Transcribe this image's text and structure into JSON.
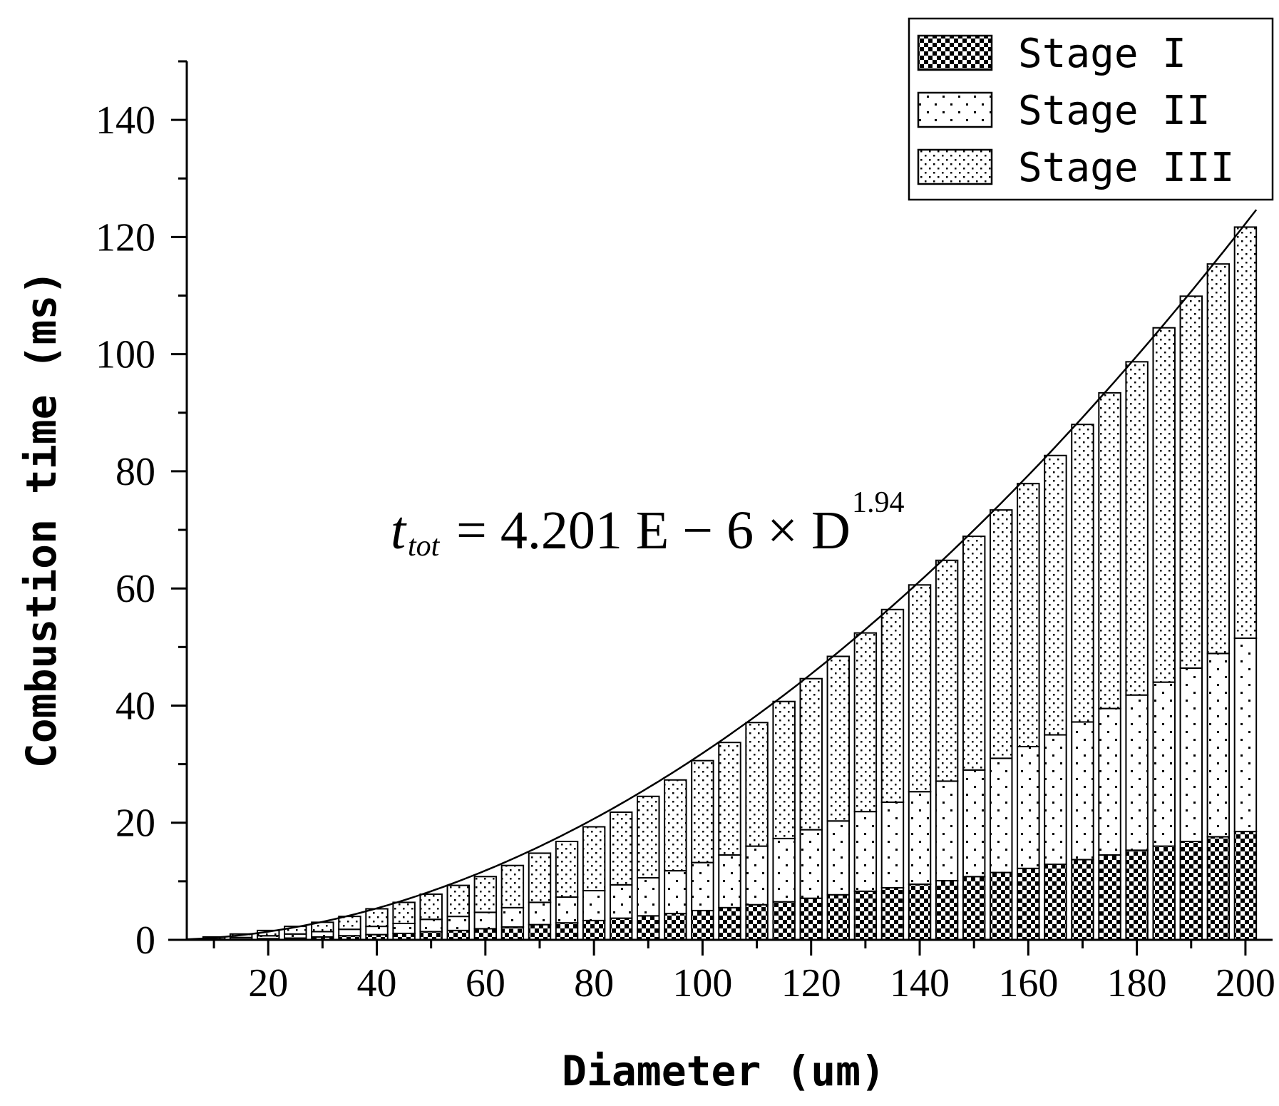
{
  "chart_data": {
    "type": "bar",
    "stacked": true,
    "xlabel": "Diameter (um)",
    "ylabel": "Combustion time (ms)",
    "xlim": [
      5,
      205
    ],
    "ylim": [
      0,
      150
    ],
    "x_ticks": [
      20,
      40,
      60,
      80,
      100,
      120,
      140,
      160,
      180,
      200
    ],
    "y_ticks": [
      0,
      20,
      40,
      60,
      80,
      100,
      120,
      140
    ],
    "x": [
      10,
      15,
      20,
      25,
      30,
      35,
      40,
      45,
      50,
      55,
      60,
      65,
      70,
      75,
      80,
      85,
      90,
      95,
      100,
      105,
      110,
      115,
      120,
      125,
      130,
      135,
      140,
      145,
      150,
      155,
      160,
      165,
      170,
      175,
      180,
      185,
      190,
      195,
      200
    ],
    "series": [
      {
        "name": "Stage I",
        "pattern": "checker",
        "values": [
          0.05,
          0.1,
          0.2,
          0.3,
          0.5,
          0.7,
          0.9,
          1.1,
          1.4,
          1.6,
          1.9,
          2.2,
          2.6,
          2.9,
          3.3,
          3.7,
          4.1,
          4.5,
          5.0,
          5.5,
          6.0,
          6.5,
          7.1,
          7.7,
          8.3,
          8.9,
          9.5,
          10.1,
          10.8,
          11.5,
          12.2,
          12.9,
          13.7,
          14.5,
          15.3,
          16.0,
          16.8,
          17.6,
          18.5
        ]
      },
      {
        "name": "Stage II",
        "pattern": "sparse-dots",
        "values": [
          0.1,
          0.3,
          0.5,
          0.7,
          0.9,
          1.1,
          1.4,
          1.7,
          2.1,
          2.4,
          2.8,
          3.3,
          3.8,
          4.4,
          5.1,
          5.7,
          6.5,
          7.3,
          8.2,
          9.0,
          10.0,
          10.8,
          11.7,
          12.6,
          13.6,
          14.6,
          15.8,
          17.0,
          18.2,
          19.5,
          20.8,
          22.1,
          23.5,
          25.0,
          26.5,
          28.0,
          29.6,
          31.3,
          33.0
        ]
      },
      {
        "name": "Stage III",
        "pattern": "dense-dots",
        "values": [
          0.35,
          0.6,
          0.9,
          1.3,
          1.6,
          2.2,
          3.0,
          3.6,
          4.3,
          5.3,
          6.1,
          7.2,
          8.4,
          9.5,
          10.9,
          12.4,
          13.9,
          15.5,
          17.4,
          19.2,
          21.1,
          23.4,
          25.8,
          28.1,
          30.5,
          32.9,
          35.3,
          37.7,
          39.9,
          42.4,
          44.9,
          47.7,
          50.8,
          53.9,
          56.9,
          60.5,
          63.5,
          66.5,
          70.2
        ]
      }
    ],
    "fit_curve": {
      "coefficient": 4.201e-06,
      "exponent": 1.94
    },
    "annotation": {
      "lhs": "t",
      "lhs_sub": "tot",
      "rhs_main": "= 4.201  E − 6 × D",
      "rhs_sup": "1.94"
    },
    "legend_position": "top-right",
    "grid": false
  }
}
